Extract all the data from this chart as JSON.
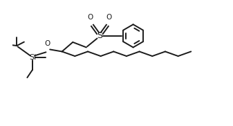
{
  "background_color": "#ffffff",
  "line_color": "#1a1a1a",
  "line_width": 1.4,
  "figure_size": [
    3.37,
    1.82
  ],
  "dpi": 100,
  "xlim": [
    0,
    10
  ],
  "ylim": [
    0,
    6
  ]
}
